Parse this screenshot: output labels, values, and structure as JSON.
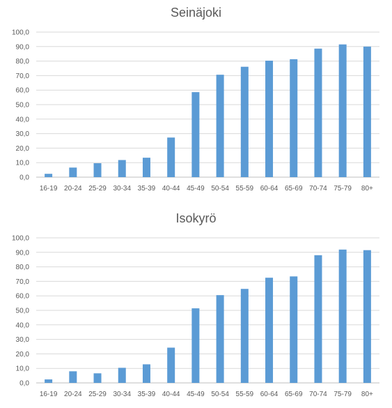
{
  "chart_data": [
    {
      "type": "bar",
      "title": "Seinäjoki",
      "categories": [
        "16-19",
        "20-24",
        "25-29",
        "30-34",
        "35-39",
        "40-44",
        "45-49",
        "50-54",
        "55-59",
        "60-64",
        "65-69",
        "70-74",
        "75-79",
        "80+"
      ],
      "values": [
        2.3,
        6.6,
        9.6,
        11.8,
        13.4,
        27.3,
        58.6,
        70.6,
        76.1,
        80.3,
        81.3,
        88.6,
        91.5,
        90.0
      ],
      "ylim": [
        0,
        100
      ],
      "yticks": [
        "0,0",
        "10,0",
        "20,0",
        "30,0",
        "40,0",
        "50,0",
        "60,0",
        "70,0",
        "80,0",
        "90,0",
        "100,0"
      ],
      "grid": true,
      "bar_color": "#5b9bd5"
    },
    {
      "type": "bar",
      "title": "Isokyrö",
      "categories": [
        "16-19",
        "20-24",
        "25-29",
        "30-34",
        "35-39",
        "40-44",
        "45-49",
        "50-54",
        "55-59",
        "60-64",
        "65-69",
        "70-74",
        "75-79",
        "80+"
      ],
      "values": [
        2.4,
        8.0,
        6.6,
        10.4,
        12.8,
        24.3,
        51.4,
        60.5,
        64.8,
        72.5,
        73.4,
        88.0,
        91.9,
        91.5
      ],
      "ylim": [
        0,
        100
      ],
      "yticks": [
        "0,0",
        "10,0",
        "20,0",
        "30,0",
        "40,0",
        "50,0",
        "60,0",
        "70,0",
        "80,0",
        "90,0",
        "100,0"
      ],
      "grid": true,
      "bar_color": "#5b9bd5"
    }
  ]
}
